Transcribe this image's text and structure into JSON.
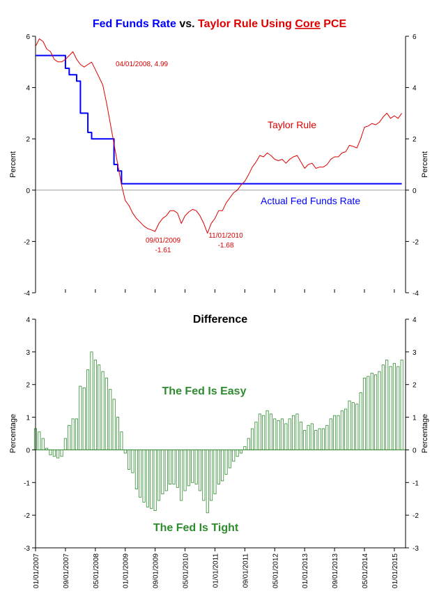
{
  "chart_data": [
    {
      "type": "line",
      "title": {
        "part1": "Fed Funds Rate",
        "part2": " vs. ",
        "part3": "Taylor Rule Using ",
        "part4": "Core",
        "part5": " PCE"
      },
      "ylabel": "Percent",
      "ylabel_right": "Percent",
      "ylim": [
        -4,
        6
      ],
      "yticks": [
        -4,
        -2,
        0,
        2,
        4,
        6
      ],
      "ytick_labels": [
        "-4",
        "-2",
        "0",
        "2",
        "4",
        "6"
      ],
      "x_start": "2007-01",
      "x_end": "2015-04",
      "grid": false,
      "series": [
        {
          "name": "Actual Fed Funds Rate",
          "color": "#0000ff",
          "step": true,
          "points": [
            [
              "2007-01",
              5.25
            ],
            [
              "2007-09",
              4.75
            ],
            [
              "2007-10",
              4.5
            ],
            [
              "2007-12",
              4.25
            ],
            [
              "2008-01",
              3.0
            ],
            [
              "2008-03",
              2.25
            ],
            [
              "2008-04",
              2.0
            ],
            [
              "2008-10",
              1.0
            ],
            [
              "2008-11",
              0.75
            ],
            [
              "2008-12",
              0.25
            ],
            [
              "2015-03",
              0.25
            ]
          ]
        },
        {
          "name": "Taylor Rule",
          "color": "#dd0000",
          "points": [
            [
              "2007-01",
              5.6
            ],
            [
              "2007-02",
              5.9
            ],
            [
              "2007-03",
              5.8
            ],
            [
              "2007-04",
              5.5
            ],
            [
              "2007-05",
              5.4
            ],
            [
              "2007-06",
              5.1
            ],
            [
              "2007-07",
              5.0
            ],
            [
              "2007-08",
              5.0
            ],
            [
              "2007-09",
              5.1
            ],
            [
              "2007-10",
              5.25
            ],
            [
              "2007-11",
              5.4
            ],
            [
              "2007-12",
              5.1
            ],
            [
              "2008-01",
              4.9
            ],
            [
              "2008-02",
              4.8
            ],
            [
              "2008-03",
              4.9
            ],
            [
              "2008-04",
              4.99
            ],
            [
              "2008-05",
              4.7
            ],
            [
              "2008-06",
              4.4
            ],
            [
              "2008-07",
              4.1
            ],
            [
              "2008-08",
              3.4
            ],
            [
              "2008-09",
              2.6
            ],
            [
              "2008-10",
              1.8
            ],
            [
              "2008-11",
              1.0
            ],
            [
              "2008-12",
              0.2
            ],
            [
              "2009-01",
              -0.4
            ],
            [
              "2009-02",
              -0.6
            ],
            [
              "2009-03",
              -0.9
            ],
            [
              "2009-04",
              -1.1
            ],
            [
              "2009-05",
              -1.25
            ],
            [
              "2009-06",
              -1.4
            ],
            [
              "2009-07",
              -1.5
            ],
            [
              "2009-08",
              -1.55
            ],
            [
              "2009-09",
              -1.61
            ],
            [
              "2009-10",
              -1.3
            ],
            [
              "2009-11",
              -1.1
            ],
            [
              "2009-12",
              -1.0
            ],
            [
              "2010-01",
              -0.8
            ],
            [
              "2010-02",
              -0.8
            ],
            [
              "2010-03",
              -0.9
            ],
            [
              "2010-04",
              -1.3
            ],
            [
              "2010-05",
              -1.0
            ],
            [
              "2010-06",
              -0.85
            ],
            [
              "2010-07",
              -0.75
            ],
            [
              "2010-08",
              -0.8
            ],
            [
              "2010-09",
              -1.0
            ],
            [
              "2010-10",
              -1.3
            ],
            [
              "2010-11",
              -1.68
            ],
            [
              "2010-12",
              -1.3
            ],
            [
              "2011-01",
              -1.1
            ],
            [
              "2011-02",
              -0.8
            ],
            [
              "2011-03",
              -0.8
            ],
            [
              "2011-04",
              -0.5
            ],
            [
              "2011-05",
              -0.3
            ],
            [
              "2011-06",
              -0.1
            ],
            [
              "2011-07",
              0.0
            ],
            [
              "2011-08",
              0.2
            ],
            [
              "2011-09",
              0.35
            ],
            [
              "2011-10",
              0.6
            ],
            [
              "2011-11",
              0.9
            ],
            [
              "2011-12",
              1.1
            ],
            [
              "2012-01",
              1.35
            ],
            [
              "2012-02",
              1.3
            ],
            [
              "2012-03",
              1.45
            ],
            [
              "2012-04",
              1.35
            ],
            [
              "2012-05",
              1.2
            ],
            [
              "2012-06",
              1.15
            ],
            [
              "2012-07",
              1.2
            ],
            [
              "2012-08",
              1.05
            ],
            [
              "2012-09",
              1.2
            ],
            [
              "2012-10",
              1.3
            ],
            [
              "2012-11",
              1.35
            ],
            [
              "2012-12",
              1.1
            ],
            [
              "2013-01",
              0.85
            ],
            [
              "2013-02",
              1.0
            ],
            [
              "2013-03",
              1.05
            ],
            [
              "2013-04",
              0.85
            ],
            [
              "2013-05",
              0.9
            ],
            [
              "2013-06",
              0.9
            ],
            [
              "2013-07",
              1.0
            ],
            [
              "2013-08",
              1.2
            ],
            [
              "2013-09",
              1.3
            ],
            [
              "2013-10",
              1.3
            ],
            [
              "2013-11",
              1.45
            ],
            [
              "2013-12",
              1.5
            ],
            [
              "2014-01",
              1.75
            ],
            [
              "2014-02",
              1.7
            ],
            [
              "2014-03",
              1.65
            ],
            [
              "2014-04",
              2.0
            ],
            [
              "2014-05",
              2.45
            ],
            [
              "2014-06",
              2.5
            ],
            [
              "2014-07",
              2.6
            ],
            [
              "2014-08",
              2.55
            ],
            [
              "2014-09",
              2.65
            ],
            [
              "2014-10",
              2.85
            ],
            [
              "2014-11",
              3.0
            ],
            [
              "2014-12",
              2.8
            ],
            [
              "2015-01",
              2.9
            ],
            [
              "2015-02",
              2.8
            ],
            [
              "2015-03",
              3.0
            ]
          ]
        }
      ],
      "annotations": [
        {
          "id": "peak",
          "lines": [
            "04/01/2008, 4.99"
          ],
          "x": "2008-04",
          "y": 4.99,
          "color": "#dd0000"
        },
        {
          "id": "trough1",
          "lines": [
            "09/01/2009",
            "-1.61"
          ],
          "x": "2009-09",
          "y": -1.61,
          "color": "#dd0000"
        },
        {
          "id": "trough2",
          "lines": [
            "11/01/2010",
            "-1.68"
          ],
          "x": "2010-11",
          "y": -1.68,
          "color": "#dd0000"
        },
        {
          "id": "taylor-label",
          "lines": [
            "Taylor Rule"
          ],
          "color": "#dd0000"
        },
        {
          "id": "fed-label",
          "lines": [
            "Actual Fed Funds Rate"
          ],
          "color": "#0000ff"
        }
      ]
    },
    {
      "type": "bar",
      "title": "Difference",
      "ylabel": "Percentage",
      "ylabel_right": "Percentage",
      "ylim": [
        -3,
        4
      ],
      "yticks": [
        -3,
        -2,
        -1,
        0,
        1,
        2,
        3,
        4
      ],
      "ytick_labels": [
        "-3",
        "-2",
        "-1",
        "0",
        "1",
        "2",
        "3",
        "4"
      ],
      "bar_color": "#2e8b2e",
      "grid": false,
      "x_start": "2007-01",
      "x_end": "2015-04",
      "values": [
        0.65,
        0.55,
        0.35,
        0.05,
        -0.15,
        -0.2,
        -0.25,
        -0.2,
        0.35,
        0.75,
        0.95,
        0.95,
        1.95,
        1.9,
        2.45,
        3.0,
        2.75,
        2.6,
        2.4,
        2.2,
        1.85,
        1.55,
        1.0,
        0.55,
        -0.1,
        -0.6,
        -0.7,
        -1.2,
        -1.45,
        -1.6,
        -1.75,
        -1.8,
        -1.86,
        -1.55,
        -1.35,
        -1.25,
        -1.05,
        -1.05,
        -1.15,
        -1.55,
        -1.25,
        -1.1,
        -1.0,
        -1.05,
        -1.25,
        -1.55,
        -1.93,
        -1.55,
        -1.35,
        -1.05,
        -0.95,
        -0.75,
        -0.55,
        -0.35,
        -0.2,
        -0.1,
        0.1,
        0.35,
        0.65,
        0.85,
        1.1,
        1.05,
        1.2,
        1.1,
        0.95,
        0.9,
        0.95,
        0.8,
        0.95,
        1.05,
        1.1,
        0.85,
        0.6,
        0.75,
        0.8,
        0.6,
        0.65,
        0.65,
        0.75,
        0.95,
        1.05,
        1.05,
        1.2,
        1.25,
        1.5,
        1.45,
        1.4,
        1.75,
        2.2,
        2.25,
        2.35,
        2.3,
        2.4,
        2.6,
        2.75,
        2.55,
        2.65,
        2.55,
        2.75
      ],
      "annotations": [
        {
          "id": "easy",
          "lines": [
            "The Fed Is Easy"
          ],
          "color": "#2e8b2e"
        },
        {
          "id": "tight",
          "lines": [
            "The Fed Is Tight"
          ],
          "color": "#2e8b2e"
        }
      ]
    }
  ],
  "x_tick_labels": [
    "01/01/2007",
    "09/01/2007",
    "05/01/2008",
    "01/01/2009",
    "09/01/2009",
    "05/01/2010",
    "01/01/2011",
    "09/01/2011",
    "05/01/2012",
    "01/01/2013",
    "09/01/2013",
    "05/01/2014",
    "01/01/2015"
  ],
  "x_tick_months": [
    "2007-01",
    "2007-09",
    "2008-05",
    "2009-01",
    "2009-09",
    "2010-05",
    "2011-01",
    "2011-09",
    "2012-05",
    "2013-01",
    "2013-09",
    "2014-05",
    "2015-01"
  ]
}
